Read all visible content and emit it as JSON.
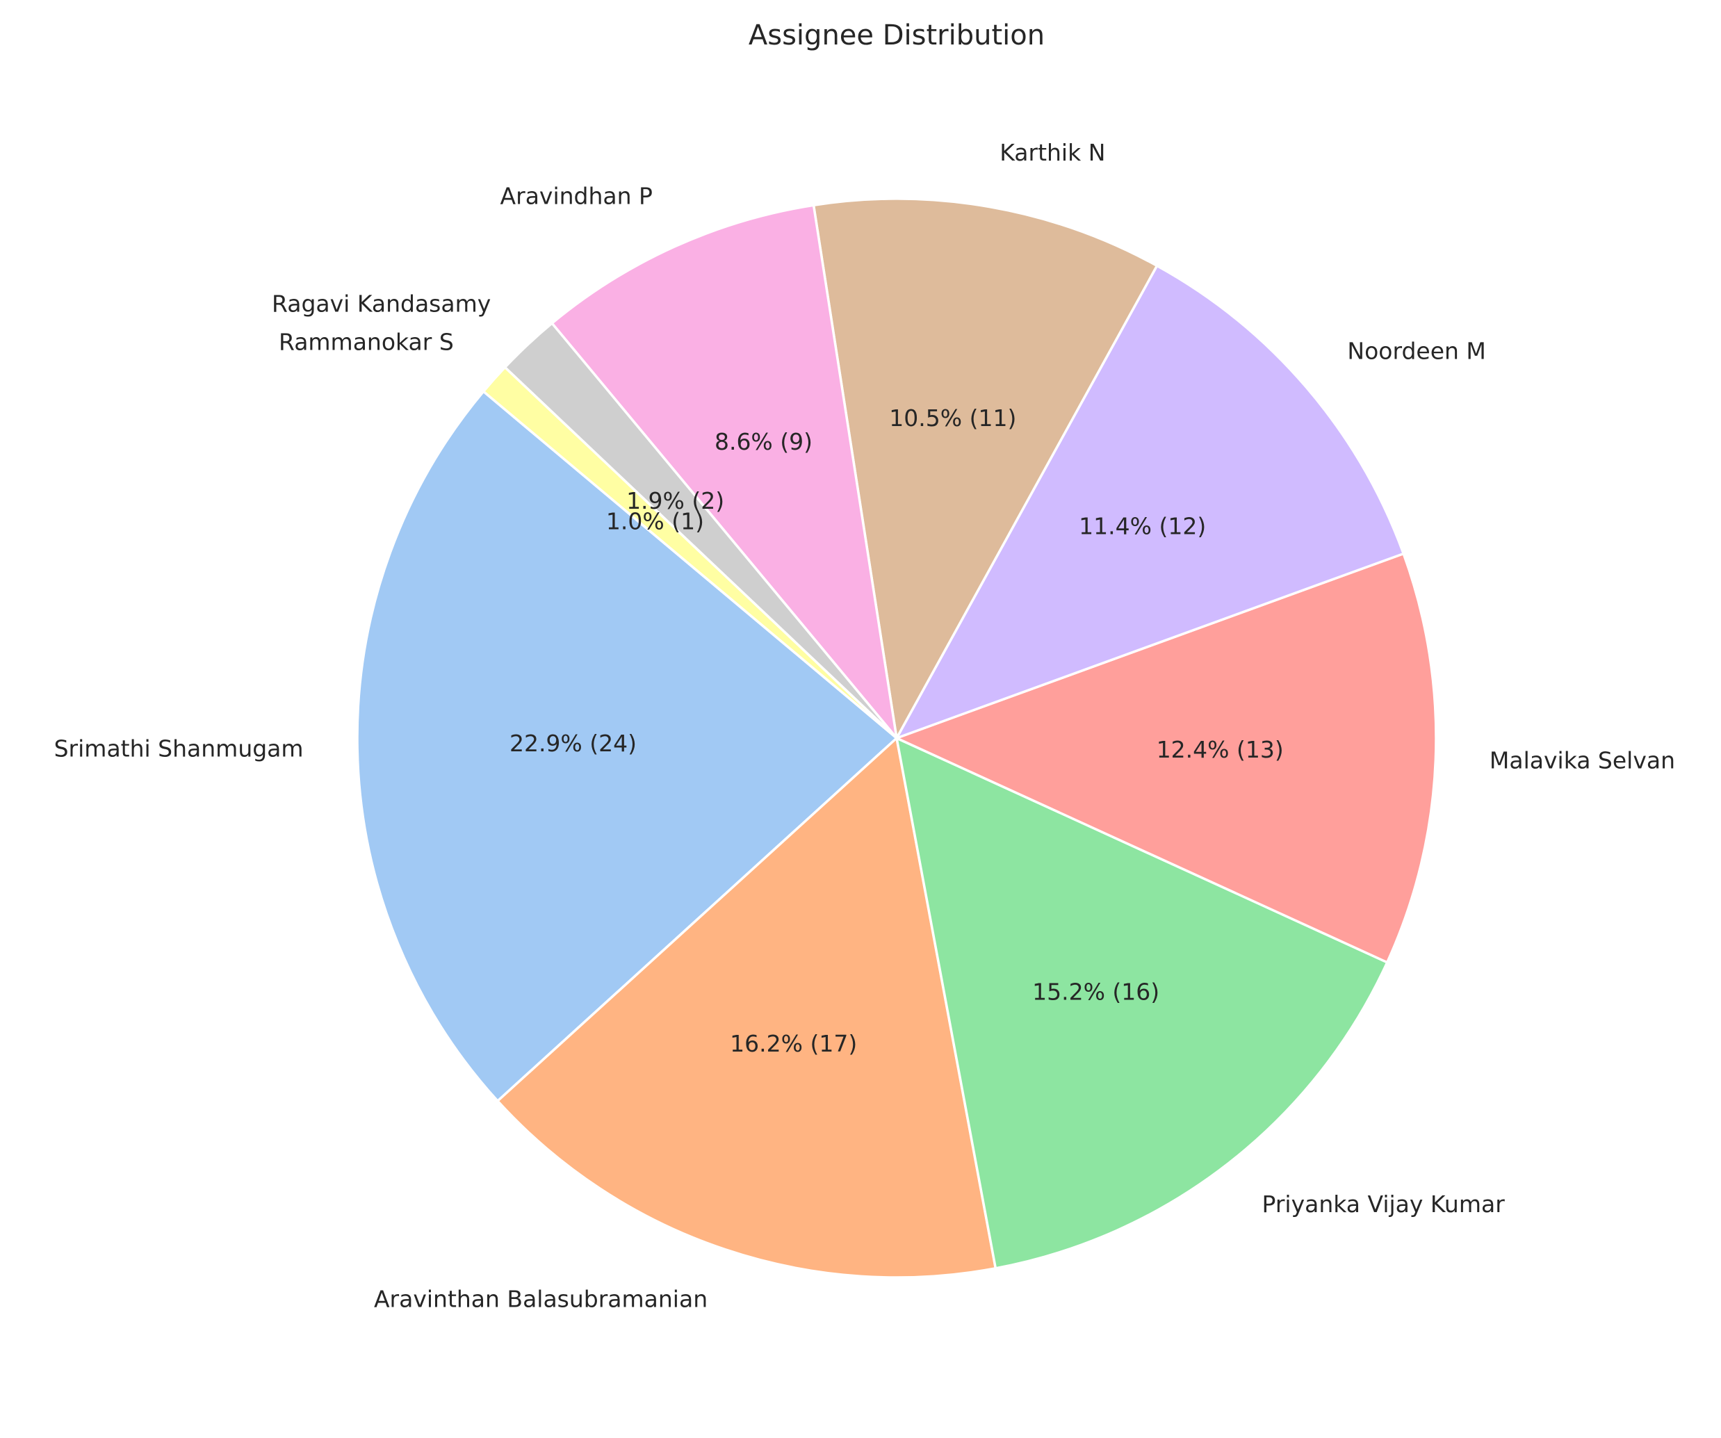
{
  "chart_data": {
    "type": "pie",
    "title": "Assignee Distribution",
    "start_angle_deg": 140,
    "direction": "counterclockwise",
    "slices": [
      {
        "label": "Srimathi Shanmugam",
        "value": 24,
        "pct_label": "22.9% (24)",
        "color": "#a1c9f4"
      },
      {
        "label": "Aravinthan Balasubramanian",
        "value": 17,
        "pct_label": "16.2% (17)",
        "color": "#ffb482"
      },
      {
        "label": "Priyanka Vijay Kumar",
        "value": 16,
        "pct_label": "15.2% (16)",
        "color": "#8de5a1"
      },
      {
        "label": "Malavika Selvan",
        "value": 13,
        "pct_label": "12.4% (13)",
        "color": "#ff9f9b"
      },
      {
        "label": "Noordeen M",
        "value": 12,
        "pct_label": "11.4% (12)",
        "color": "#d0bbff"
      },
      {
        "label": "Karthik N",
        "value": 11,
        "pct_label": "10.5% (11)",
        "color": "#debb9b"
      },
      {
        "label": "Aravindhan P",
        "value": 9,
        "pct_label": "8.6% (9)",
        "color": "#fab0e4"
      },
      {
        "label": "Ragavi Kandasamy",
        "value": 2,
        "pct_label": "1.9% (2)",
        "color": "#cfcfcf"
      },
      {
        "label": "Rammanokar S",
        "value": 1,
        "pct_label": "1.0% (1)",
        "color": "#fffea3"
      }
    ]
  }
}
